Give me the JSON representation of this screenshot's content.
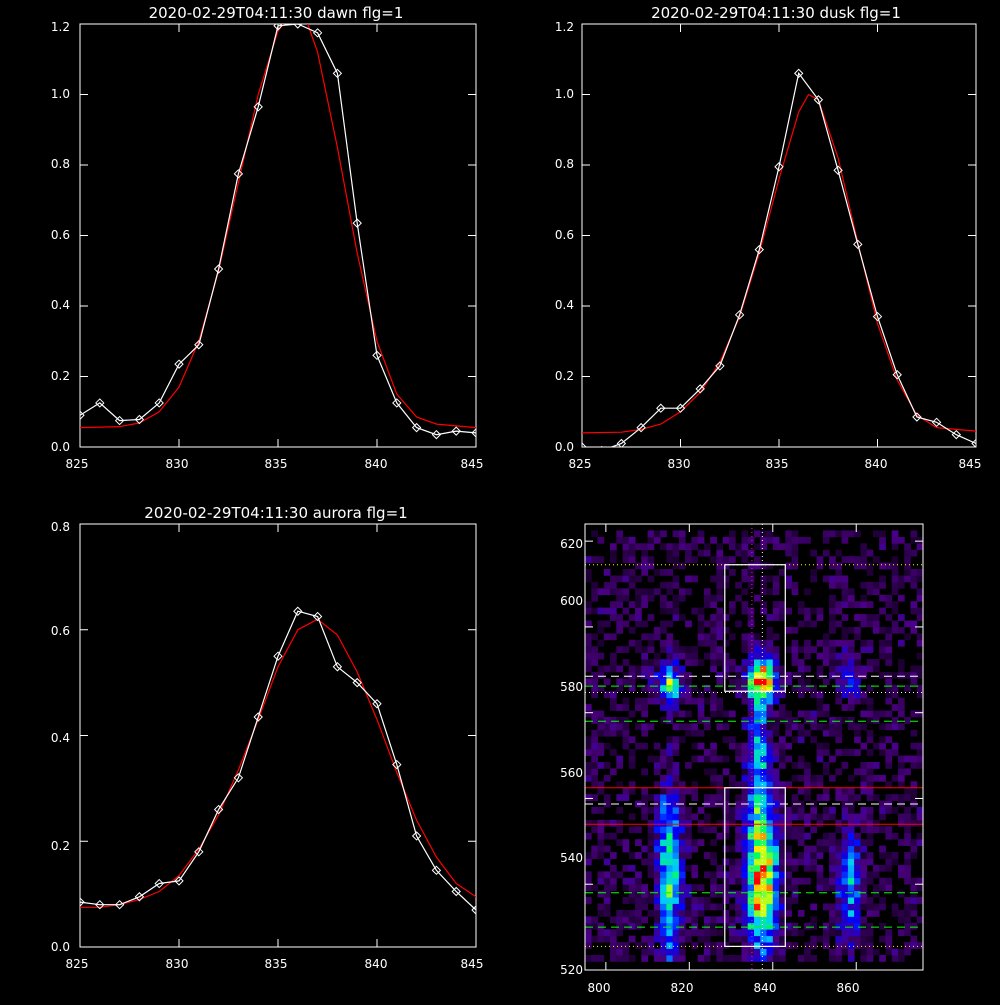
{
  "panels": {
    "dawn": {
      "title": "2020-02-29T04:11:30 dawn flg=1",
      "xticks": [
        "825",
        "830",
        "835",
        "840",
        "845"
      ],
      "yticks": [
        "0.0",
        "0.2",
        "0.4",
        "0.6",
        "0.8",
        "1.0",
        "1.2"
      ]
    },
    "dusk": {
      "title": "2020-02-29T04:11:30 dusk flg=1",
      "xticks": [
        "825",
        "830",
        "835",
        "840",
        "845"
      ],
      "yticks": [
        "0.0",
        "0.2",
        "0.4",
        "0.6",
        "0.8",
        "1.0",
        "1.2"
      ]
    },
    "aurora": {
      "title": "2020-02-29T04:11:30 aurora flg=1",
      "xticks": [
        "825",
        "830",
        "835",
        "840",
        "845"
      ],
      "yticks": [
        "0.0",
        "0.2",
        "0.4",
        "0.6",
        "0.8"
      ]
    },
    "image": {
      "title": "",
      "xticks": [
        "800",
        "820",
        "840",
        "860"
      ],
      "yticks": [
        "520",
        "540",
        "560",
        "580",
        "600",
        "620"
      ]
    }
  },
  "colors": {
    "background": "#000000",
    "axes": "#ffffff",
    "data": "#ffffff",
    "fit": "#ff0000",
    "guide_green": "#00ff00",
    "guide_magenta": "#ff00ff"
  },
  "chart_data": [
    {
      "type": "line",
      "title": "2020-02-29T04:11:30 dawn flg=1",
      "xlim": [
        825,
        845
      ],
      "ylim": [
        0,
        1.2
      ],
      "series": [
        {
          "marker": "diamond",
          "color": "#ffffff",
          "x": [
            825,
            826,
            827,
            828,
            829,
            830,
            831,
            832,
            833,
            834,
            835,
            836,
            837,
            838,
            839,
            840,
            841,
            842,
            843,
            844,
            845
          ],
          "y": [
            0.09,
            0.125,
            0.075,
            0.078,
            0.125,
            0.235,
            0.29,
            0.505,
            0.775,
            0.965,
            1.195,
            1.2,
            1.175,
            1.06,
            0.635,
            0.26,
            0.125,
            0.055,
            0.035,
            0.045,
            0.04
          ]
        },
        {
          "style": "fit",
          "color": "#ff0000",
          "x": [
            825,
            827,
            828,
            829,
            830,
            831,
            832,
            833,
            834,
            835,
            835.5,
            836,
            836.5,
            837,
            838,
            839,
            840,
            841,
            842,
            843,
            845
          ],
          "y": [
            0.055,
            0.058,
            0.068,
            0.1,
            0.17,
            0.3,
            0.5,
            0.75,
            1.0,
            1.18,
            1.22,
            1.22,
            1.2,
            1.12,
            0.85,
            0.55,
            0.3,
            0.15,
            0.085,
            0.065,
            0.055
          ]
        }
      ]
    },
    {
      "type": "line",
      "title": "2020-02-29T04:11:30 dusk flg=1",
      "xlim": [
        825,
        845
      ],
      "ylim": [
        0,
        1.2
      ],
      "series": [
        {
          "marker": "diamond",
          "color": "#ffffff",
          "x": [
            825,
            826,
            827,
            828,
            829,
            830,
            831,
            832,
            833,
            834,
            835,
            836,
            837,
            838,
            839,
            840,
            841,
            842,
            843,
            844,
            845
          ],
          "y": [
            0.0,
            -0.01,
            0.01,
            0.055,
            0.11,
            0.11,
            0.165,
            0.23,
            0.375,
            0.56,
            0.795,
            1.06,
            0.985,
            0.785,
            0.575,
            0.37,
            0.205,
            0.085,
            0.07,
            0.035,
            0.01
          ]
        },
        {
          "style": "fit",
          "color": "#ff0000",
          "x": [
            825,
            827,
            828,
            829,
            830,
            831,
            832,
            833,
            834,
            835,
            836,
            836.5,
            837,
            838,
            839,
            840,
            841,
            842,
            843,
            845
          ],
          "y": [
            0.04,
            0.042,
            0.05,
            0.065,
            0.1,
            0.155,
            0.24,
            0.37,
            0.55,
            0.76,
            0.95,
            1.0,
            0.985,
            0.82,
            0.58,
            0.35,
            0.19,
            0.09,
            0.055,
            0.045
          ]
        }
      ]
    },
    {
      "type": "line",
      "title": "2020-02-29T04:11:30 aurora flg=1",
      "xlim": [
        825,
        845
      ],
      "ylim": [
        0,
        0.8
      ],
      "series": [
        {
          "marker": "diamond",
          "color": "#ffffff",
          "x": [
            825,
            826,
            827,
            828,
            829,
            830,
            831,
            832,
            833,
            834,
            835,
            836,
            837,
            838,
            839,
            840,
            841,
            842,
            843,
            844,
            845
          ],
          "y": [
            0.085,
            0.08,
            0.08,
            0.095,
            0.12,
            0.125,
            0.18,
            0.26,
            0.32,
            0.435,
            0.55,
            0.635,
            0.625,
            0.53,
            0.5,
            0.46,
            0.345,
            0.21,
            0.145,
            0.105,
            0.07
          ]
        },
        {
          "style": "fit",
          "color": "#ff0000",
          "x": [
            825,
            826,
            827,
            828,
            829,
            830,
            831,
            832,
            833,
            834,
            835,
            836,
            837,
            838,
            839,
            840,
            841,
            842,
            843,
            844,
            845
          ],
          "y": [
            0.075,
            0.075,
            0.08,
            0.09,
            0.105,
            0.135,
            0.185,
            0.25,
            0.335,
            0.43,
            0.53,
            0.6,
            0.62,
            0.59,
            0.52,
            0.43,
            0.33,
            0.24,
            0.17,
            0.12,
            0.095
          ]
        }
      ]
    },
    {
      "type": "heatmap",
      "xlim": [
        795,
        876
      ],
      "ylim": [
        520,
        624
      ],
      "colormap": [
        "#000000",
        "#4b0082",
        "#0000ff",
        "#00c8ff",
        "#00ff64",
        "#ffff00",
        "#ff0000"
      ],
      "sources": [
        {
          "x": 836.5,
          "y": 541,
          "sx": 2.6,
          "sy": 12,
          "amp": 0.9
        },
        {
          "x": 836.5,
          "y": 587,
          "sx": 2.2,
          "sy": 3.5,
          "amp": 1.0
        },
        {
          "x": 836.0,
          "y": 570,
          "sx": 1.8,
          "sy": 10,
          "amp": 0.35
        },
        {
          "x": 814.5,
          "y": 541,
          "sx": 2.0,
          "sy": 13,
          "amp": 0.6
        },
        {
          "x": 814.5,
          "y": 586,
          "sx": 2.0,
          "sy": 3.5,
          "amp": 0.55
        },
        {
          "x": 857.5,
          "y": 539,
          "sx": 2.0,
          "sy": 9,
          "amp": 0.4
        },
        {
          "x": 857.5,
          "y": 588,
          "sx": 2.0,
          "sy": 4,
          "amp": 0.25
        }
      ],
      "boxes": [
        {
          "x0": 828.5,
          "x1": 843.0,
          "y0": 525.5,
          "y1": 562.5
        },
        {
          "x0": 828.5,
          "x1": 843.0,
          "y0": 585.0,
          "y1": 614.5
        }
      ],
      "hlines": [
        {
          "y": 614.5,
          "color": "#ffff00",
          "style": "dotted"
        },
        {
          "y": 588.5,
          "color": "#ffffff",
          "style": "dashed"
        },
        {
          "y": 586.2,
          "color": "#00ff00",
          "style": "dashed"
        },
        {
          "y": 584.7,
          "color": "#ffffff",
          "style": "dotted"
        },
        {
          "y": 578.0,
          "color": "#00ff00",
          "style": "dashed"
        },
        {
          "y": 562.5,
          "color": "#ff0000",
          "style": "solid"
        },
        {
          "y": 558.7,
          "color": "#ffffff",
          "style": "dashed"
        },
        {
          "y": 554.0,
          "color": "#ff0000",
          "style": "solid"
        },
        {
          "y": 538.0,
          "color": "#00ff00",
          "style": "dashed"
        },
        {
          "y": 530.0,
          "color": "#00ff00",
          "style": "dashed"
        },
        {
          "y": 525.5,
          "color": "#ffff00",
          "style": "dotted"
        }
      ],
      "vlines": [
        {
          "x": 835.0,
          "color": "#ff00ff",
          "style": "dotted"
        },
        {
          "x": 837.5,
          "color": "#ffffff",
          "style": "dotted"
        }
      ]
    }
  ]
}
